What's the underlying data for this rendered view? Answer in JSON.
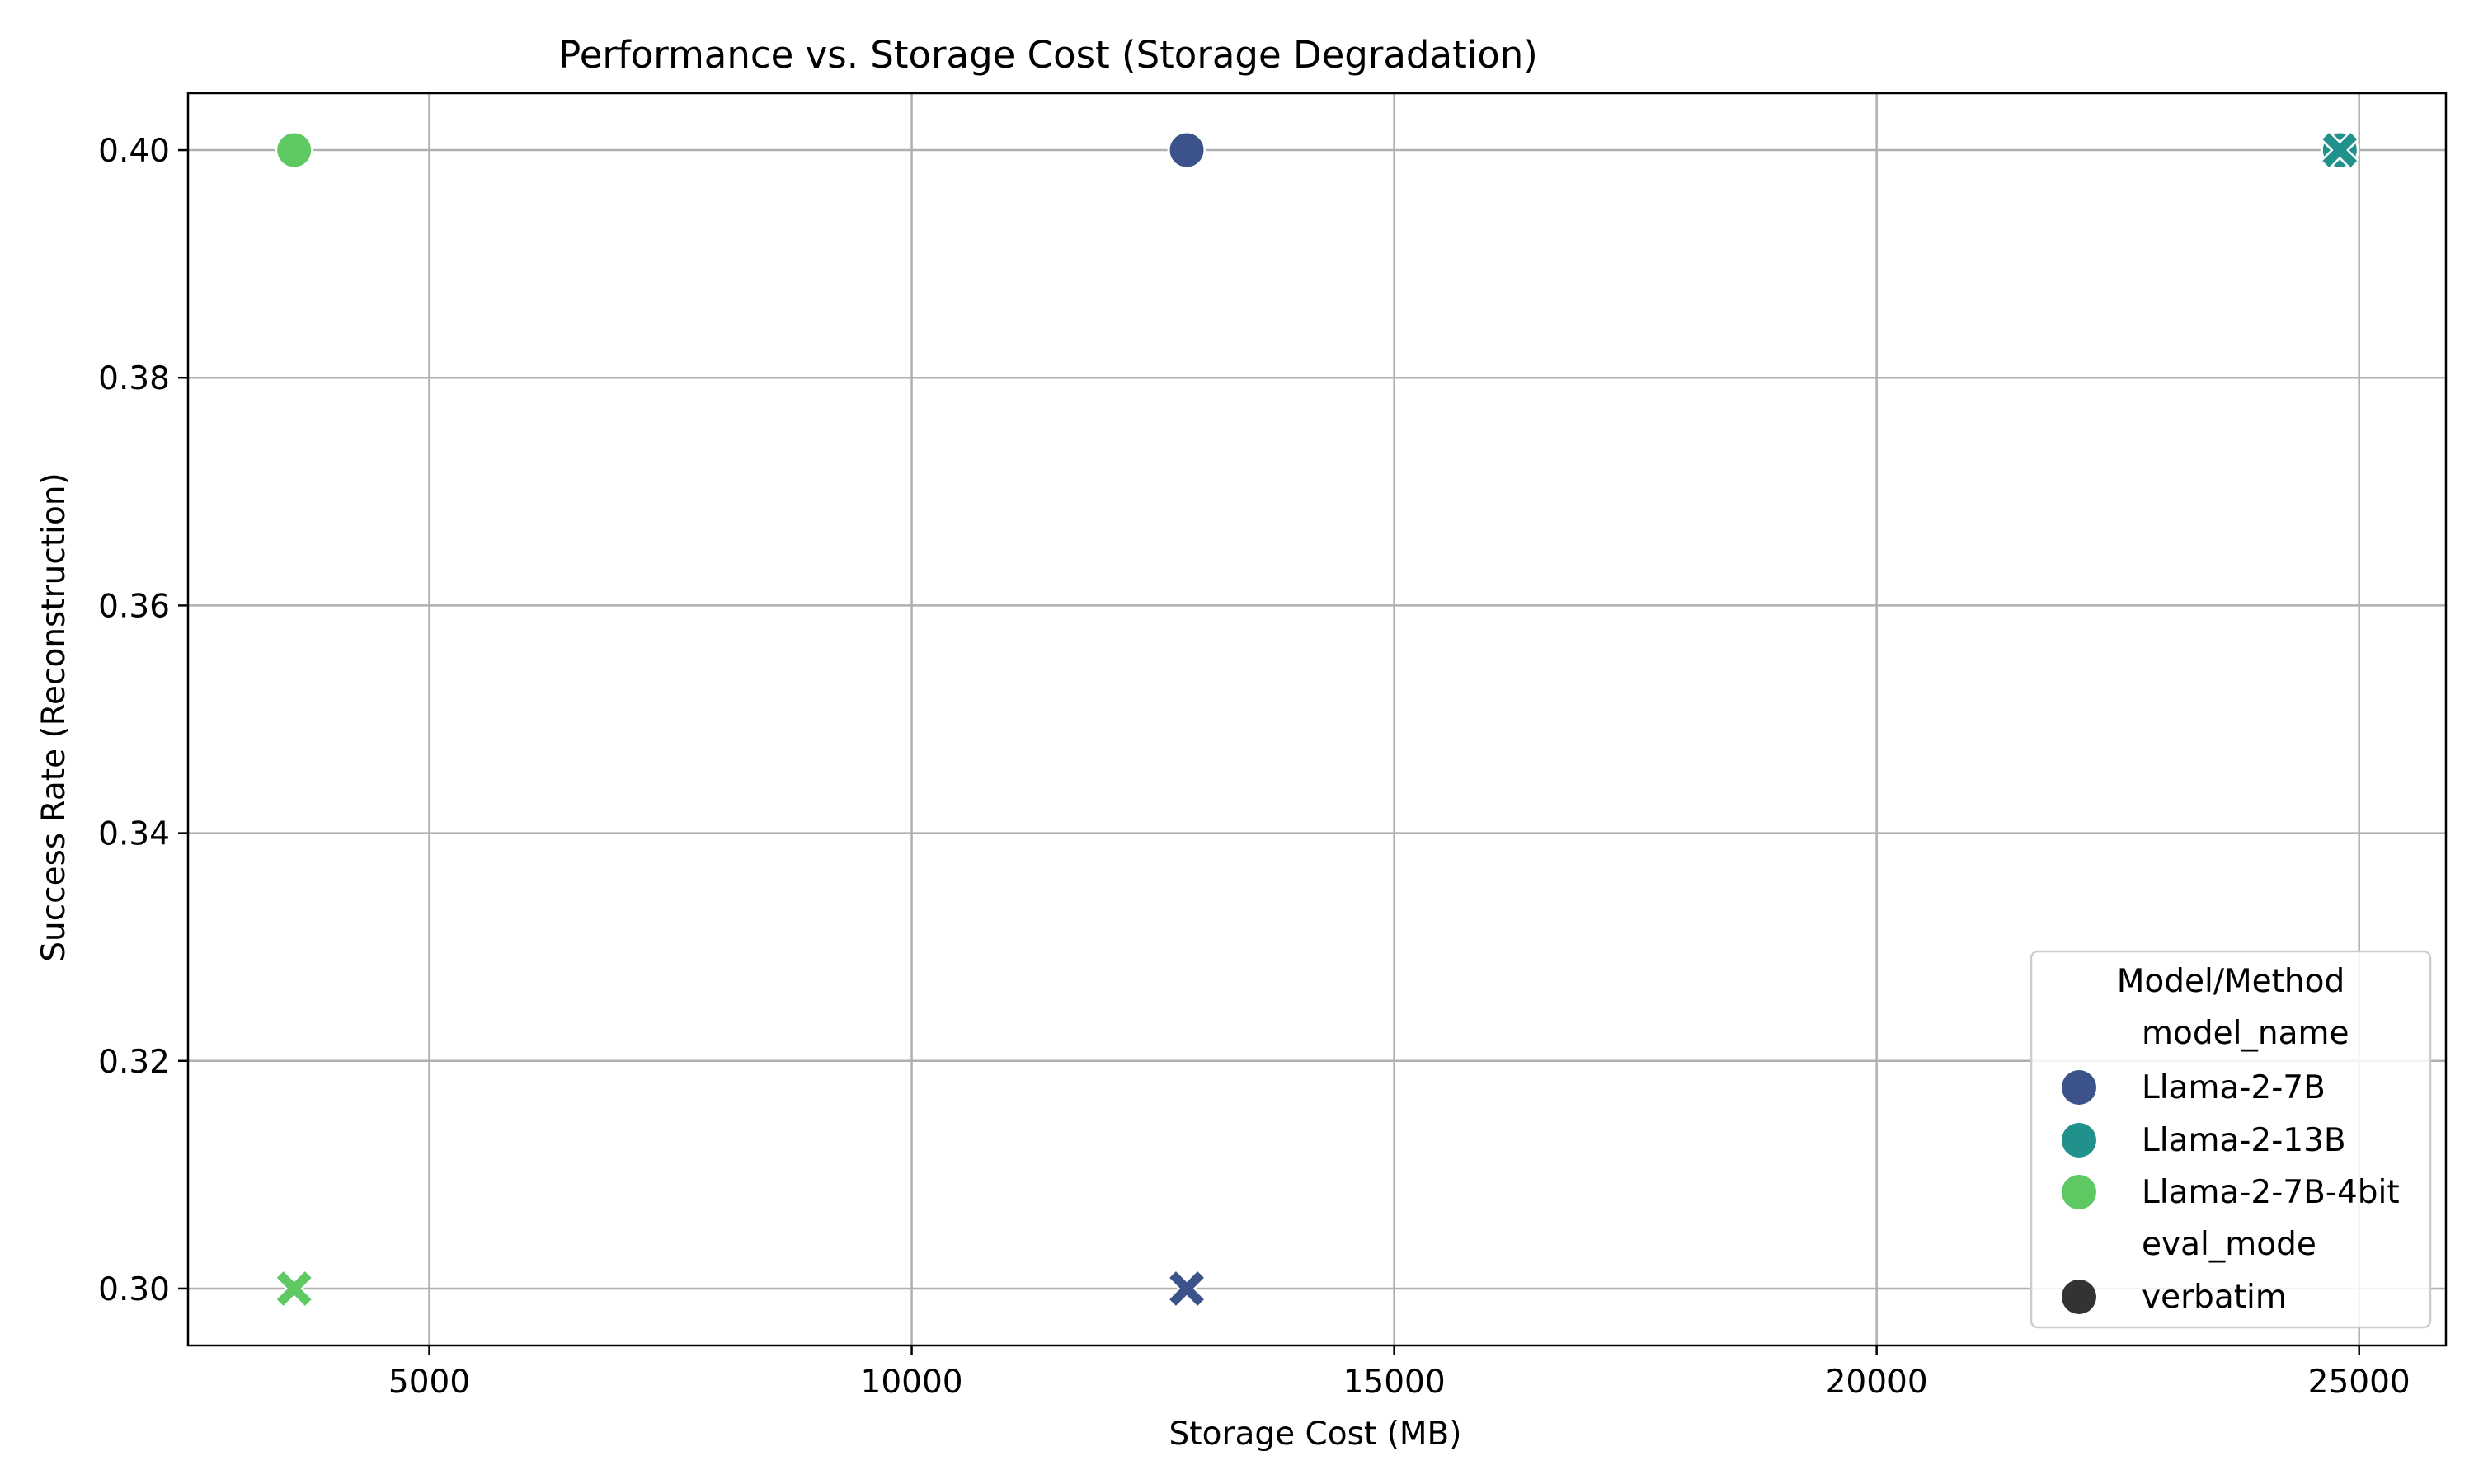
{
  "chart_data": {
    "type": "scatter",
    "title": "Performance vs. Storage Cost (Storage Degradation)",
    "xlabel": "Storage Cost (MB)",
    "ylabel": "Success Rate (Reconstruction)",
    "xlim": [
      2500,
      25900
    ],
    "ylim": [
      0.295,
      0.405
    ],
    "xticks": [
      5000,
      10000,
      15000,
      20000,
      25000
    ],
    "yticks": [
      0.3,
      0.32,
      0.34,
      0.36,
      0.38,
      0.4
    ],
    "grid": true,
    "legend": {
      "title": "Model/Method",
      "position": "lower-right",
      "hue_header": "model_name",
      "style_header": "eval_mode",
      "style_entries": [
        {
          "label": "verbatim",
          "marker": "circle"
        }
      ]
    },
    "series": [
      {
        "name": "Llama-2-7B",
        "color": "#3b528b",
        "points": [
          {
            "x": 12850,
            "y": 0.4,
            "marker": "circle"
          },
          {
            "x": 12850,
            "y": 0.3,
            "marker": "x"
          }
        ]
      },
      {
        "name": "Llama-2-13B",
        "color": "#21918c",
        "points": [
          {
            "x": 24800,
            "y": 0.4,
            "marker": "circle"
          },
          {
            "x": 24800,
            "y": 0.4,
            "marker": "x"
          }
        ]
      },
      {
        "name": "Llama-2-7B-4bit",
        "color": "#5ec962",
        "points": [
          {
            "x": 3600,
            "y": 0.4,
            "marker": "circle"
          },
          {
            "x": 3600,
            "y": 0.3,
            "marker": "x"
          }
        ]
      }
    ]
  }
}
